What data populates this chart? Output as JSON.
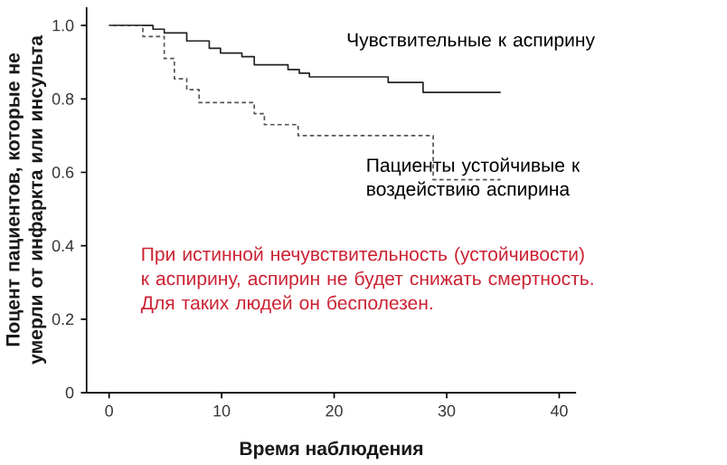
{
  "chart_data": {
    "type": "step",
    "xlabel": "Время наблюдения",
    "ylabel": "Поцент пациентов, которые не умерли от инфаркта или инсульта",
    "xlim": [
      -2,
      41.5
    ],
    "ylim": [
      0,
      1.05
    ],
    "xticks": [
      0,
      10,
      20,
      30,
      40
    ],
    "yticks": [
      0,
      0.2,
      0.4,
      0.6,
      0.8,
      {
        "value": 1,
        "label": "1.0"
      }
    ],
    "series": [
      {
        "name": "Чувствительные к аспирину",
        "color": "#222222",
        "line_style": "solid",
        "x": [
          0,
          3.9,
          4.9,
          6.9,
          8.9,
          9.9,
          11.8,
          12.9,
          15.9,
          16.9,
          17.8,
          24.8,
          27.9,
          34.8
        ],
        "values": [
          1.0,
          0.99,
          0.98,
          0.958,
          0.938,
          0.925,
          0.915,
          0.893,
          0.88,
          0.87,
          0.86,
          0.845,
          0.818,
          0.818
        ]
      },
      {
        "name": "Пациенты устойчивые к воздействию аспирина",
        "color": "#555555",
        "line_style": "dashed",
        "x": [
          0,
          3.0,
          4.9,
          5.8,
          6.9,
          8.0,
          12.9,
          13.8,
          16.8,
          28.8,
          34.8
        ],
        "values": [
          1.0,
          0.97,
          0.91,
          0.855,
          0.825,
          0.79,
          0.76,
          0.73,
          0.7,
          0.58,
          0.58
        ]
      }
    ],
    "annotations": [
      "При истинной нечувствительность (устойчивости) к аспирину, аспирин не будет снижать смертность. Для таких людей он бесполезен."
    ]
  }
}
